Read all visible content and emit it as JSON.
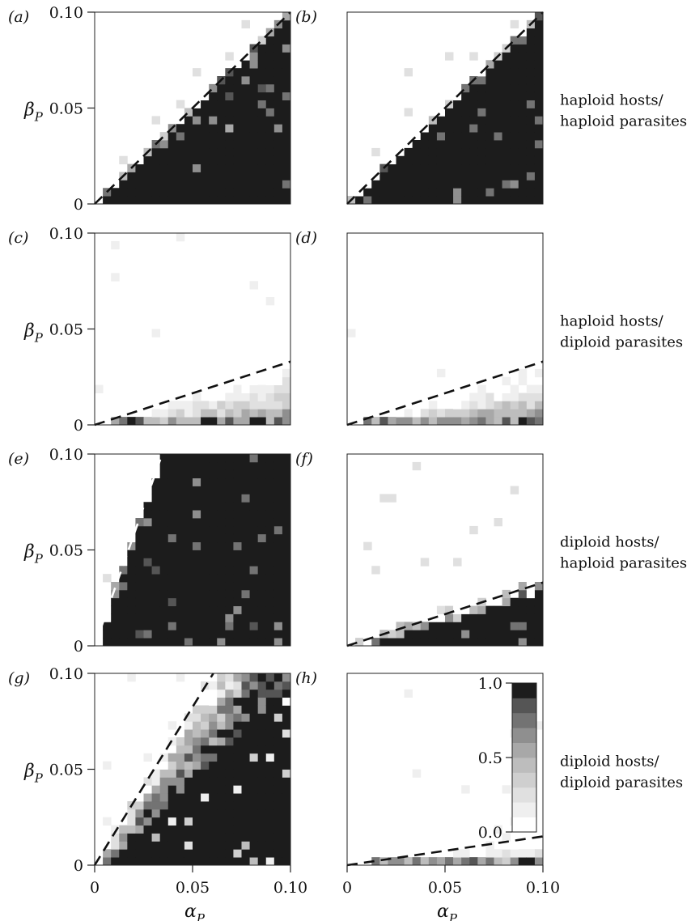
{
  "chart_data": {
    "type": "heatmap",
    "xlabel": "α",
    "xlabel_sub": "P",
    "ylabel": "β",
    "ylabel_sub": "P",
    "x_ticks": [
      "0",
      "0.05",
      "0.10"
    ],
    "y_ticks": [
      "0",
      "0.05",
      "0.10"
    ],
    "xlim": [
      0,
      0.1
    ],
    "ylim": [
      0,
      0.1
    ],
    "grid": false,
    "row_labels": [
      [
        "haploid hosts/",
        "haploid parasites"
      ],
      [
        "haploid hosts/",
        "diploid parasites"
      ],
      [
        "diploid hosts/",
        "haploid parasites"
      ],
      [
        "diploid hosts/",
        "diploid parasites"
      ]
    ],
    "colorbar": {
      "ticks": [
        "0.0",
        "0.5",
        "1.0"
      ],
      "range": [
        0,
        1
      ],
      "levels": 10,
      "colors": [
        "#ffffff",
        "#efefef",
        "#e0e0e0",
        "#cfcfcf",
        "#bdbdbd",
        "#a8a8a8",
        "#8f8f8f",
        "#737373",
        "#555555",
        "#1c1c1c"
      ]
    },
    "panels": [
      {
        "label": "(a)",
        "threshold_slope": 1.0,
        "threshold_style": "black-dashed",
        "region_shape": "wedge",
        "fill": 1.0
      },
      {
        "label": "(b)",
        "threshold_slope": 1.0,
        "threshold_style": "black-dashed",
        "region_shape": "wedge",
        "fill": 1.0
      },
      {
        "label": "(c)",
        "threshold_slope": 0.33,
        "threshold_style": "black-dashed",
        "region_shape": "band",
        "fill": 0.5
      },
      {
        "label": "(d)",
        "threshold_slope": 0.33,
        "threshold_style": "black-dashed",
        "region_shape": "band",
        "fill": 0.5
      },
      {
        "label": "(e)",
        "threshold_slope": 2.9,
        "threshold_style": "white-dashed",
        "region_shape": "wedge",
        "fill": 1.0
      },
      {
        "label": "(f)",
        "threshold_slope": 0.33,
        "threshold_style": "black-dashed",
        "region_shape": "wedge",
        "fill": 1.0
      },
      {
        "label": "(g)",
        "threshold_slope": 1.65,
        "threshold_style": "black-dashed",
        "region_shape": "gradient",
        "fill": 1.0
      },
      {
        "label": "(h)",
        "threshold_slope": 0.15,
        "threshold_style": "black-dashed",
        "region_shape": "band",
        "fill": 0.6
      }
    ]
  }
}
